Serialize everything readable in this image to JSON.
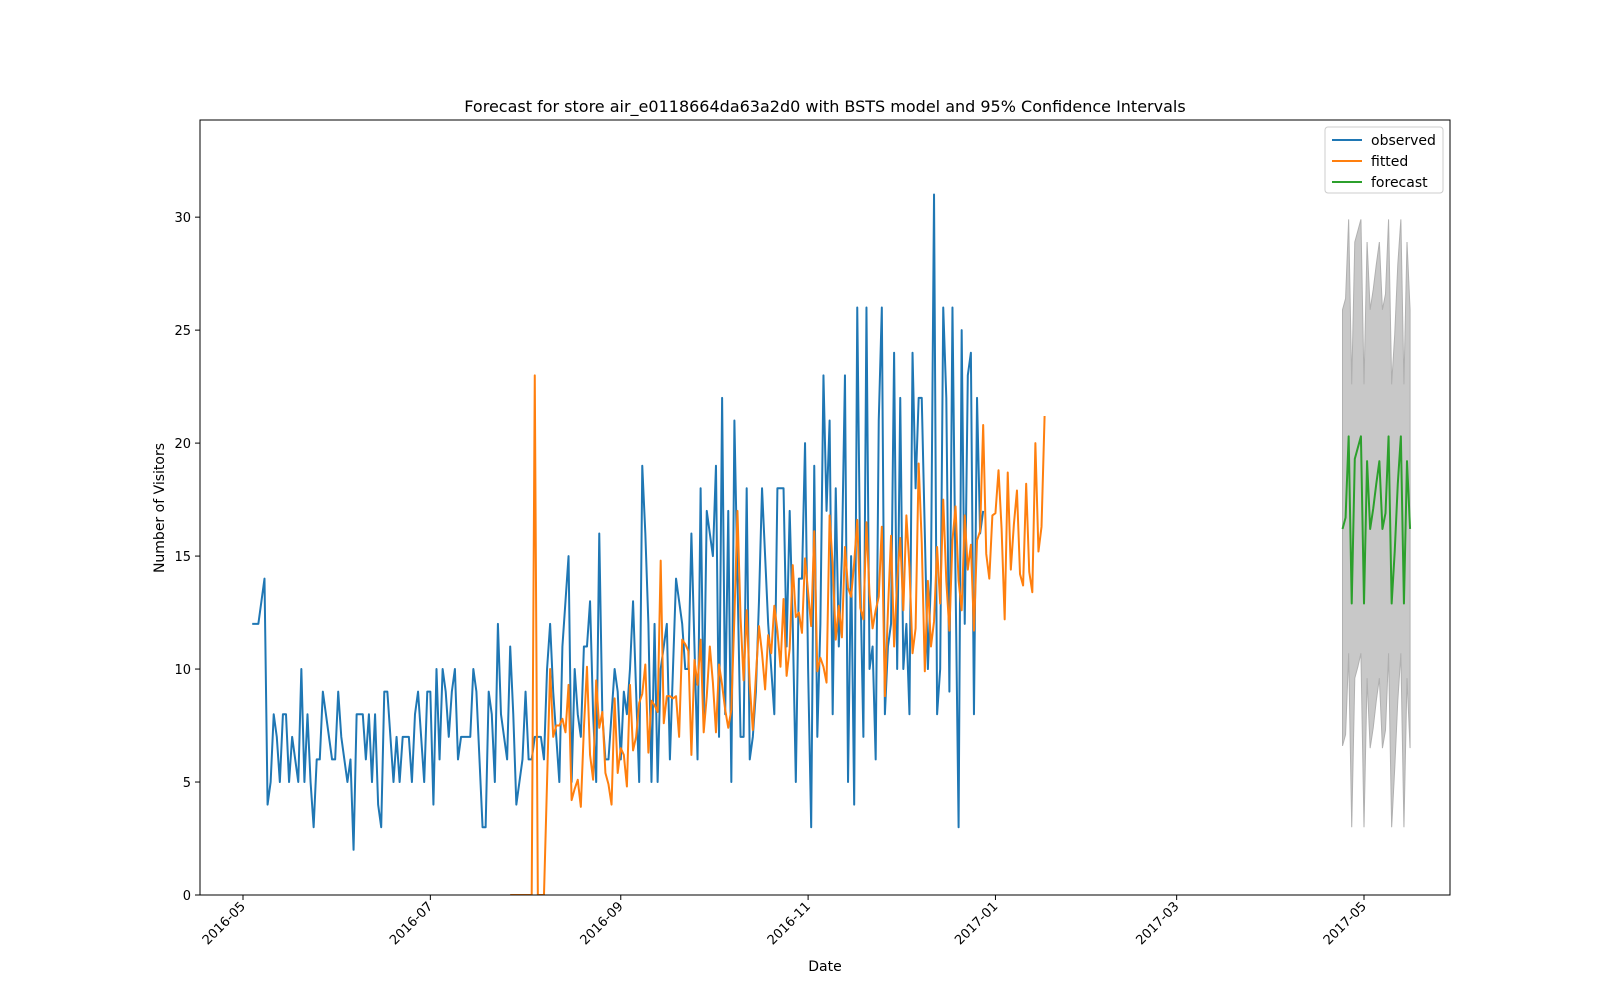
{
  "chart_data": {
    "type": "line",
    "title": "Forecast for store air_e0118664da63a2d0 with BSTS model and 95% Confidence Intervals",
    "xlabel": "Date",
    "ylabel": "Number of Visitors",
    "xlim": [
      "2016-04-17",
      "2017-05-29"
    ],
    "ylim": [
      0,
      34.3
    ],
    "x_ticks": [
      "2016-05",
      "2016-07",
      "2016-09",
      "2016-11",
      "2017-01",
      "2017-03",
      "2017-05"
    ],
    "y_ticks": [
      0,
      5,
      10,
      15,
      20,
      25,
      30
    ],
    "legend": [
      "observed",
      "fitted",
      "forecast"
    ],
    "legend_position": "top-right",
    "grid": false,
    "series": [
      {
        "name": "observed",
        "color": "#1f77b4",
        "x_start": "2016-05-04",
        "values": [
          12,
          12,
          12,
          13,
          14,
          4,
          5,
          8,
          7,
          5,
          8,
          8,
          5,
          7,
          6,
          5,
          10,
          5,
          8,
          5,
          3,
          6,
          6,
          9,
          8,
          7,
          6,
          6,
          9,
          7,
          6,
          5,
          6,
          2,
          8,
          8,
          8,
          6,
          8,
          5,
          8,
          4,
          3,
          9,
          9,
          7,
          5,
          7,
          5,
          7,
          7,
          7,
          5,
          8,
          9,
          7,
          5,
          9,
          9,
          4,
          10,
          6,
          10,
          9,
          7,
          9,
          10,
          6,
          7,
          7,
          7,
          7,
          10,
          9,
          6,
          3,
          3,
          9,
          8,
          5,
          12,
          8,
          7,
          6,
          11,
          8,
          4,
          5,
          6,
          9,
          6,
          6,
          7,
          7,
          7,
          6,
          10,
          12,
          9,
          7,
          5,
          11,
          13,
          15,
          5,
          10,
          8,
          7,
          11,
          11,
          13,
          8,
          5,
          16,
          8,
          6,
          6,
          8,
          10,
          9,
          6,
          9,
          8,
          10,
          13,
          9,
          5,
          19,
          16,
          12,
          5,
          12,
          5,
          10,
          11,
          12,
          6,
          10,
          14,
          13,
          12,
          10,
          10,
          16,
          11,
          6,
          18,
          8,
          17,
          16,
          15,
          19,
          7,
          22,
          8,
          17,
          5,
          21,
          14,
          7,
          7,
          18,
          6,
          7,
          9,
          13,
          18,
          15,
          12,
          10,
          8,
          18,
          18,
          18,
          11,
          17,
          12,
          5,
          14,
          14,
          20,
          10,
          3,
          19,
          7,
          12,
          23,
          17,
          21,
          8,
          18,
          11,
          15,
          23,
          5,
          15,
          4,
          26,
          14,
          7,
          26,
          10,
          11,
          6,
          21,
          26,
          8,
          11,
          12,
          24,
          10,
          22,
          10,
          12,
          8,
          24,
          18,
          22,
          22,
          16,
          10,
          14,
          31,
          8,
          10,
          26,
          22,
          9,
          26,
          14,
          3,
          25,
          12,
          23,
          24,
          8,
          22,
          16,
          17
        ]
      },
      {
        "name": "fitted",
        "color": "#ff7f0e",
        "x_start": "2016-07-27",
        "values": [
          0,
          0,
          0,
          0,
          0,
          0,
          0,
          0,
          23,
          0,
          0,
          0,
          5,
          10,
          7,
          7.5,
          7.5,
          7.8,
          7.2,
          9.3,
          4.2,
          4.7,
          5.1,
          3.9,
          7.4,
          10.1,
          6.2,
          5.1,
          9.5,
          7.4,
          8.1,
          5.4,
          4.9,
          4,
          8.7,
          5.4,
          6.5,
          6.2,
          4.8,
          9.3,
          6.4,
          7,
          8.5,
          8.9,
          10.2,
          6.3,
          8.6,
          8.4,
          8.1,
          14.8,
          7.6,
          8.8,
          8.8,
          8.7,
          8.8,
          7,
          11.3,
          11.1,
          10.8,
          6.2,
          10.4,
          9.3,
          11.3,
          7.2,
          8.8,
          11,
          9.4,
          7.2,
          10.2,
          9.3,
          8.2,
          7.4,
          8.2,
          12.3,
          17,
          12.3,
          9.5,
          12.6,
          9.3,
          7.3,
          9.7,
          11.9,
          10.7,
          9.1,
          11.5,
          10.7,
          12.8,
          11.7,
          10.1,
          13.1,
          9.7,
          10.9,
          14.6,
          12.3,
          12.5,
          11.6,
          14.9,
          13.4,
          11.9,
          16.1,
          9.9,
          10.5,
          10.1,
          9.4,
          16.8,
          14.6,
          11.3,
          12.8,
          11.4,
          15.4,
          13.6,
          13.2,
          14.7,
          16.6,
          12.7,
          12.2,
          16.5,
          13.3,
          11.8,
          12.6,
          13.2,
          16.3,
          8.8,
          12.6,
          15.9,
          11,
          13.9,
          15.8,
          12.6,
          16.8,
          14.5,
          10.7,
          11.8,
          19.1,
          15.6,
          9.9,
          13.9,
          11,
          12.1,
          15.4,
          12.9,
          17.5,
          13.9,
          11.7,
          15.7,
          17.2,
          13.9,
          12.6,
          16.8,
          14.4,
          15.5,
          11.7,
          15.7,
          16.1,
          20.8,
          15.1,
          14,
          16.8,
          16.9,
          18.8,
          16.2,
          12.2,
          18.7,
          14.4,
          16.4,
          17.9,
          14.2,
          13.7,
          18.2,
          14.3,
          13.4,
          20,
          15.2,
          16.3,
          21.2
        ]
      },
      {
        "name": "forecast",
        "color": "#2ca02c",
        "x_start": "2017-04-24",
        "values": [
          16.2,
          16.7,
          20.3,
          12.9,
          19.3,
          19.8,
          20.3,
          12.9,
          19.2,
          16.2,
          17.1,
          18.2,
          19.2,
          16.2,
          16.9,
          20.3,
          12.9,
          15.2,
          18.2,
          20.3,
          12.9,
          19.2,
          16.2
        ],
        "lower_95": [
          6.6,
          7.1,
          10.7,
          3,
          9.6,
          10.1,
          10.7,
          3,
          9.6,
          6.5,
          7.4,
          8.6,
          9.6,
          6.5,
          7.3,
          10.7,
          3,
          5.6,
          8.6,
          10.7,
          3,
          9.6,
          6.5
        ],
        "upper_95": [
          25.9,
          26.4,
          29.9,
          22.6,
          28.9,
          29.4,
          29.9,
          22.6,
          28.9,
          25.9,
          26.8,
          27.9,
          28.9,
          25.9,
          26.6,
          29.9,
          22.6,
          24.8,
          27.9,
          29.9,
          22.6,
          28.9,
          25.9
        ]
      }
    ]
  }
}
